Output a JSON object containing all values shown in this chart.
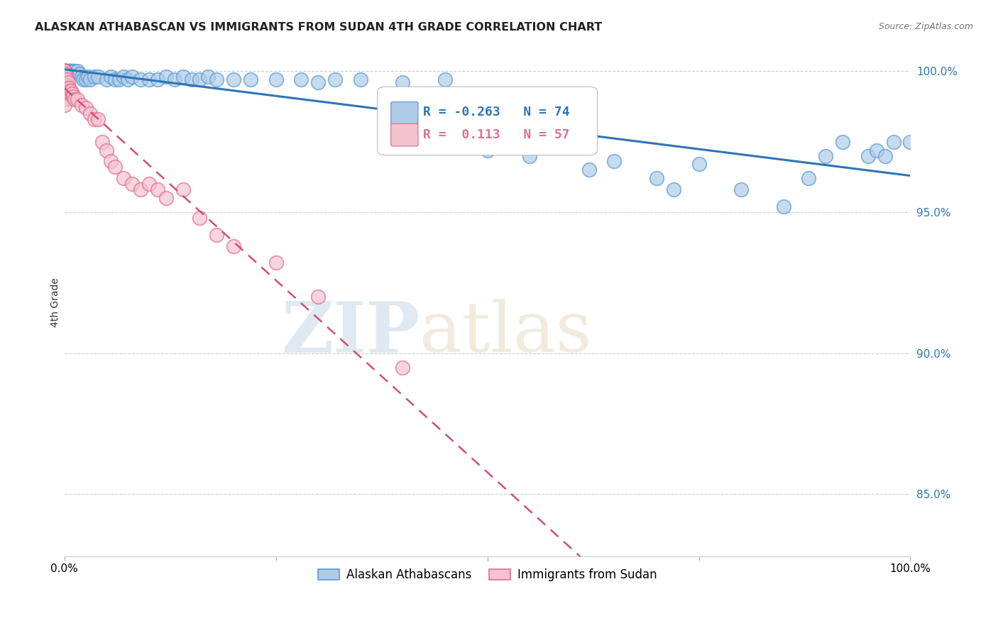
{
  "title": "ALASKAN ATHABASCAN VS IMMIGRANTS FROM SUDAN 4TH GRADE CORRELATION CHART",
  "source": "Source: ZipAtlas.com",
  "ylabel": "4th Grade",
  "ylabel_right_ticks": [
    85.0,
    90.0,
    95.0,
    100.0
  ],
  "xlim": [
    0.0,
    1.0
  ],
  "ylim": [
    0.828,
    1.008
  ],
  "blue_r": -0.263,
  "blue_n": 74,
  "pink_r": 0.113,
  "pink_n": 57,
  "blue_color": "#aecce8",
  "blue_edge": "#5b9bd5",
  "pink_color": "#f5c2d0",
  "pink_edge": "#e07090",
  "blue_line_color": "#2e75b6",
  "pink_line_color": "#d05070",
  "watermark_zip": "ZIP",
  "watermark_atlas": "atlas",
  "blue_scatter_x": [
    0.0,
    0.0,
    0.0,
    0.0,
    0.0,
    0.001,
    0.001,
    0.002,
    0.002,
    0.003,
    0.003,
    0.004,
    0.005,
    0.005,
    0.006,
    0.007,
    0.008,
    0.008,
    0.01,
    0.01,
    0.012,
    0.015,
    0.018,
    0.02,
    0.022,
    0.025,
    0.028,
    0.03,
    0.035,
    0.04,
    0.05,
    0.055,
    0.06,
    0.065,
    0.07,
    0.075,
    0.08,
    0.09,
    0.1,
    0.11,
    0.12,
    0.13,
    0.14,
    0.15,
    0.16,
    0.17,
    0.18,
    0.2,
    0.22,
    0.25,
    0.28,
    0.3,
    0.32,
    0.35,
    0.4,
    0.45,
    0.5,
    0.55,
    0.6,
    0.62,
    0.65,
    0.7,
    0.72,
    0.75,
    0.8,
    0.85,
    0.88,
    0.9,
    0.92,
    0.95,
    0.96,
    0.97,
    0.98,
    1.0
  ],
  "blue_scatter_y": [
    1.0,
    1.0,
    1.0,
    1.0,
    1.0,
    1.0,
    1.0,
    1.0,
    1.0,
    1.0,
    1.0,
    1.0,
    1.0,
    1.0,
    1.0,
    1.0,
    1.0,
    1.0,
    1.0,
    1.0,
    1.0,
    1.0,
    0.999,
    0.998,
    0.997,
    0.997,
    0.998,
    0.997,
    0.998,
    0.998,
    0.997,
    0.998,
    0.997,
    0.997,
    0.998,
    0.997,
    0.998,
    0.997,
    0.997,
    0.997,
    0.998,
    0.997,
    0.998,
    0.997,
    0.997,
    0.998,
    0.997,
    0.997,
    0.997,
    0.997,
    0.997,
    0.996,
    0.997,
    0.997,
    0.996,
    0.997,
    0.972,
    0.97,
    0.975,
    0.965,
    0.968,
    0.962,
    0.958,
    0.967,
    0.958,
    0.952,
    0.962,
    0.97,
    0.975,
    0.97,
    0.972,
    0.97,
    0.975,
    0.975
  ],
  "pink_scatter_x": [
    0.0,
    0.0,
    0.0,
    0.0,
    0.0,
    0.0,
    0.0,
    0.0,
    0.0,
    0.0,
    0.0,
    0.0,
    0.0,
    0.0,
    0.0,
    0.0,
    0.0,
    0.001,
    0.001,
    0.001,
    0.002,
    0.002,
    0.002,
    0.003,
    0.003,
    0.004,
    0.004,
    0.005,
    0.006,
    0.007,
    0.008,
    0.009,
    0.01,
    0.012,
    0.015,
    0.02,
    0.025,
    0.03,
    0.035,
    0.04,
    0.045,
    0.05,
    0.055,
    0.06,
    0.07,
    0.08,
    0.09,
    0.1,
    0.11,
    0.12,
    0.14,
    0.16,
    0.18,
    0.2,
    0.25,
    0.3,
    0.4
  ],
  "pink_scatter_y": [
    1.0,
    1.0,
    1.0,
    1.0,
    1.0,
    1.0,
    1.0,
    0.999,
    0.998,
    0.997,
    0.996,
    0.995,
    0.994,
    0.993,
    0.992,
    0.99,
    0.988,
    0.999,
    0.997,
    0.995,
    0.998,
    0.996,
    0.994,
    0.997,
    0.995,
    0.996,
    0.994,
    0.994,
    0.993,
    0.992,
    0.993,
    0.992,
    0.991,
    0.99,
    0.99,
    0.988,
    0.987,
    0.985,
    0.983,
    0.983,
    0.975,
    0.972,
    0.968,
    0.966,
    0.962,
    0.96,
    0.958,
    0.96,
    0.958,
    0.955,
    0.958,
    0.948,
    0.942,
    0.938,
    0.932,
    0.92,
    0.895
  ]
}
